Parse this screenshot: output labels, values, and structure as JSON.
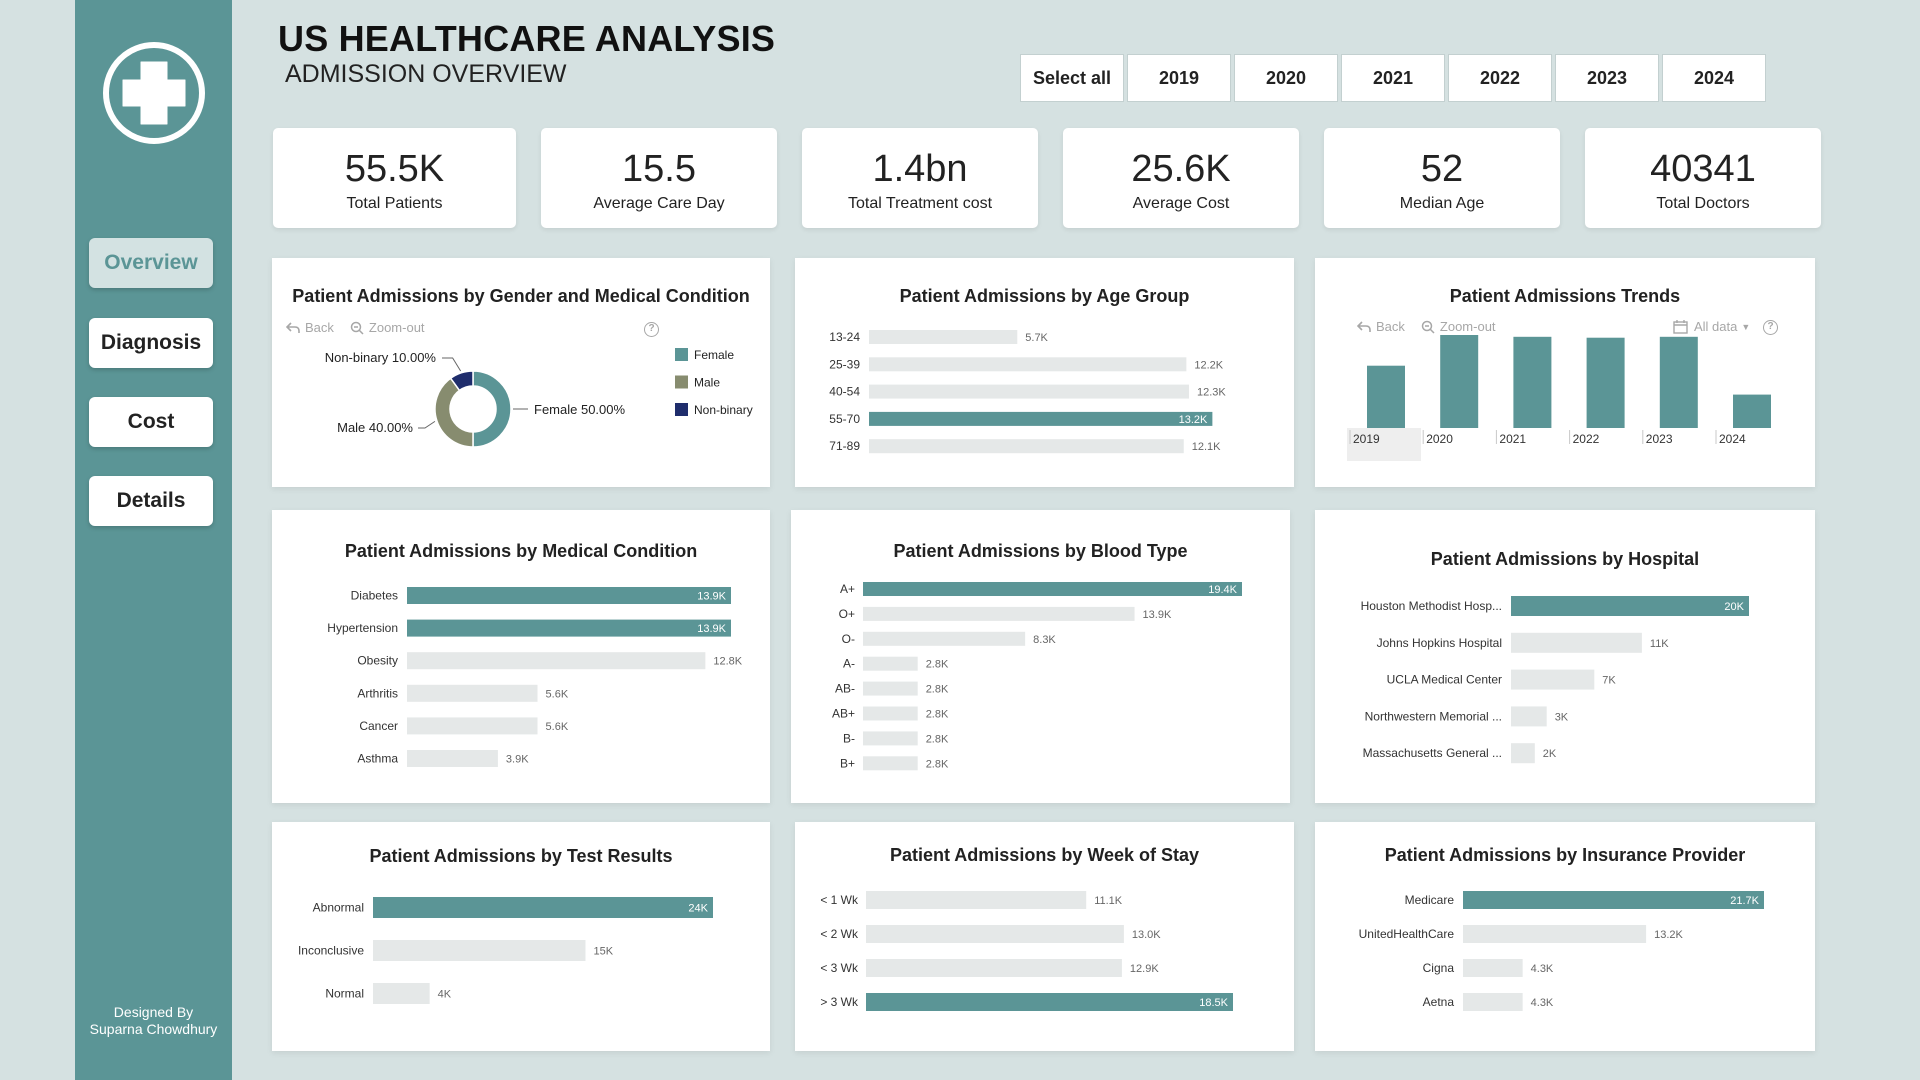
{
  "colors": {
    "accent": "#5b9596",
    "track": "#e5e8e8",
    "male": "#878c6f",
    "nonbinary": "#1f2d6c",
    "sidebar": "#5b9596",
    "background": "#d5e1e1"
  },
  "sidebar": {
    "logo": "medical-cross-icon",
    "nav": [
      {
        "label": "Overview",
        "active": true
      },
      {
        "label": "Diagnosis"
      },
      {
        "label": "Cost"
      },
      {
        "label": "Details"
      }
    ],
    "credit_line1": "Designed By",
    "credit_line2": "Suparna Chowdhury"
  },
  "header": {
    "title": "US HEALTHCARE ANALYSIS",
    "subtitle": "ADMISSION OVERVIEW"
  },
  "year_filter": [
    "Select all",
    "2019",
    "2020",
    "2021",
    "2022",
    "2023",
    "2024"
  ],
  "kpis": [
    {
      "value": "55.5K",
      "label": "Total Patients"
    },
    {
      "value": "15.5",
      "label": "Average Care Day"
    },
    {
      "value": "1.4bn",
      "label": "Total Treatment cost"
    },
    {
      "value": "25.6K",
      "label": "Average Cost"
    },
    {
      "value": "52",
      "label": "Median Age"
    },
    {
      "value": "40341",
      "label": "Total Doctors"
    }
  ],
  "toolbar": {
    "back": "Back",
    "zoom": "Zoom-out",
    "alldata": "All data",
    "help": "?"
  },
  "chart_data": [
    {
      "id": "gender",
      "type": "pie",
      "title": "Patient Admissions by Gender and Medical Condition",
      "slices": [
        {
          "name": "Female",
          "value": 50.0,
          "label": "Female 50.00%"
        },
        {
          "name": "Male",
          "value": 40.0,
          "label": "Male 40.00%"
        },
        {
          "name": "Non-binary",
          "value": 10.0,
          "label": "Non-binary 10.00%"
        }
      ],
      "legend": [
        "Female",
        "Male",
        "Non-binary"
      ],
      "legend_position": "right"
    },
    {
      "id": "age",
      "type": "bar",
      "orientation": "horizontal",
      "title": "Patient Admissions by Age Group",
      "categories": [
        "13-24",
        "25-39",
        "40-54",
        "55-70",
        "71-89"
      ],
      "values": [
        5.7,
        12.2,
        12.3,
        13.2,
        12.1
      ],
      "labels": [
        "5.7K",
        "12.2K",
        "12.3K",
        "13.2K",
        "12.1K"
      ],
      "highlight": [
        3
      ],
      "unit": "K"
    },
    {
      "id": "trend",
      "type": "bar",
      "orientation": "vertical",
      "title": "Patient Admissions Trends",
      "categories": [
        "2019",
        "2020",
        "2021",
        "2022",
        "2023",
        "2024"
      ],
      "values": [
        6.9,
        10.3,
        10.1,
        10.0,
        10.1,
        3.7
      ],
      "unit": "K"
    },
    {
      "id": "condition",
      "type": "bar",
      "orientation": "horizontal",
      "title": "Patient Admissions by Medical Condition",
      "categories": [
        "Diabetes",
        "Hypertension",
        "Obesity",
        "Arthritis",
        "Cancer",
        "Asthma"
      ],
      "values": [
        13.9,
        13.9,
        12.8,
        5.6,
        5.6,
        3.9
      ],
      "labels": [
        "13.9K",
        "13.9K",
        "12.8K",
        "5.6K",
        "5.6K",
        "3.9K"
      ],
      "highlight": [
        0,
        1
      ],
      "unit": "K"
    },
    {
      "id": "blood",
      "type": "bar",
      "orientation": "horizontal",
      "title": "Patient Admissions by Blood Type",
      "categories": [
        "A+",
        "O+",
        "O-",
        "A-",
        "AB-",
        "AB+",
        "B-",
        "B+"
      ],
      "values": [
        19.4,
        13.9,
        8.3,
        2.8,
        2.8,
        2.8,
        2.8,
        2.8
      ],
      "labels": [
        "19.4K",
        "13.9K",
        "8.3K",
        "2.8K",
        "2.8K",
        "2.8K",
        "2.8K",
        "2.8K"
      ],
      "highlight": [
        0
      ],
      "unit": "K"
    },
    {
      "id": "hospital",
      "type": "bar",
      "orientation": "horizontal",
      "title": "Patient Admissions by Hospital",
      "categories": [
        "Houston Methodist Hosp...",
        "Johns Hopkins Hospital",
        "UCLA Medical Center",
        "Northwestern Memorial ...",
        "Massachusetts General ..."
      ],
      "values": [
        20,
        11,
        7,
        3,
        2
      ],
      "labels": [
        "20K",
        "11K",
        "7K",
        "3K",
        "2K"
      ],
      "highlight": [
        0
      ],
      "unit": "K"
    },
    {
      "id": "test",
      "type": "bar",
      "orientation": "horizontal",
      "title": "Patient Admissions by Test Results",
      "categories": [
        "Abnormal",
        "Inconclusive",
        "Normal"
      ],
      "values": [
        24,
        15,
        4
      ],
      "labels": [
        "24K",
        "15K",
        "4K"
      ],
      "highlight": [
        0
      ],
      "unit": "K"
    },
    {
      "id": "week",
      "type": "bar",
      "orientation": "horizontal",
      "title": "Patient Admissions by Week of Stay",
      "categories": [
        "< 1 Wk",
        "< 2 Wk",
        "< 3 Wk",
        "> 3 Wk"
      ],
      "values": [
        11.1,
        13.0,
        12.9,
        18.5
      ],
      "labels": [
        "11.1K",
        "13.0K",
        "12.9K",
        "18.5K"
      ],
      "highlight": [
        3
      ],
      "unit": "K"
    },
    {
      "id": "insurance",
      "type": "bar",
      "orientation": "horizontal",
      "title": "Patient Admissions by Insurance Provider",
      "categories": [
        "Medicare",
        "UnitedHealthCare",
        "Cigna",
        "Aetna"
      ],
      "values": [
        21.7,
        13.2,
        4.3,
        4.3
      ],
      "labels": [
        "21.7K",
        "13.2K",
        "4.3K",
        "4.3K"
      ],
      "highlight": [
        0
      ],
      "unit": "K"
    }
  ]
}
